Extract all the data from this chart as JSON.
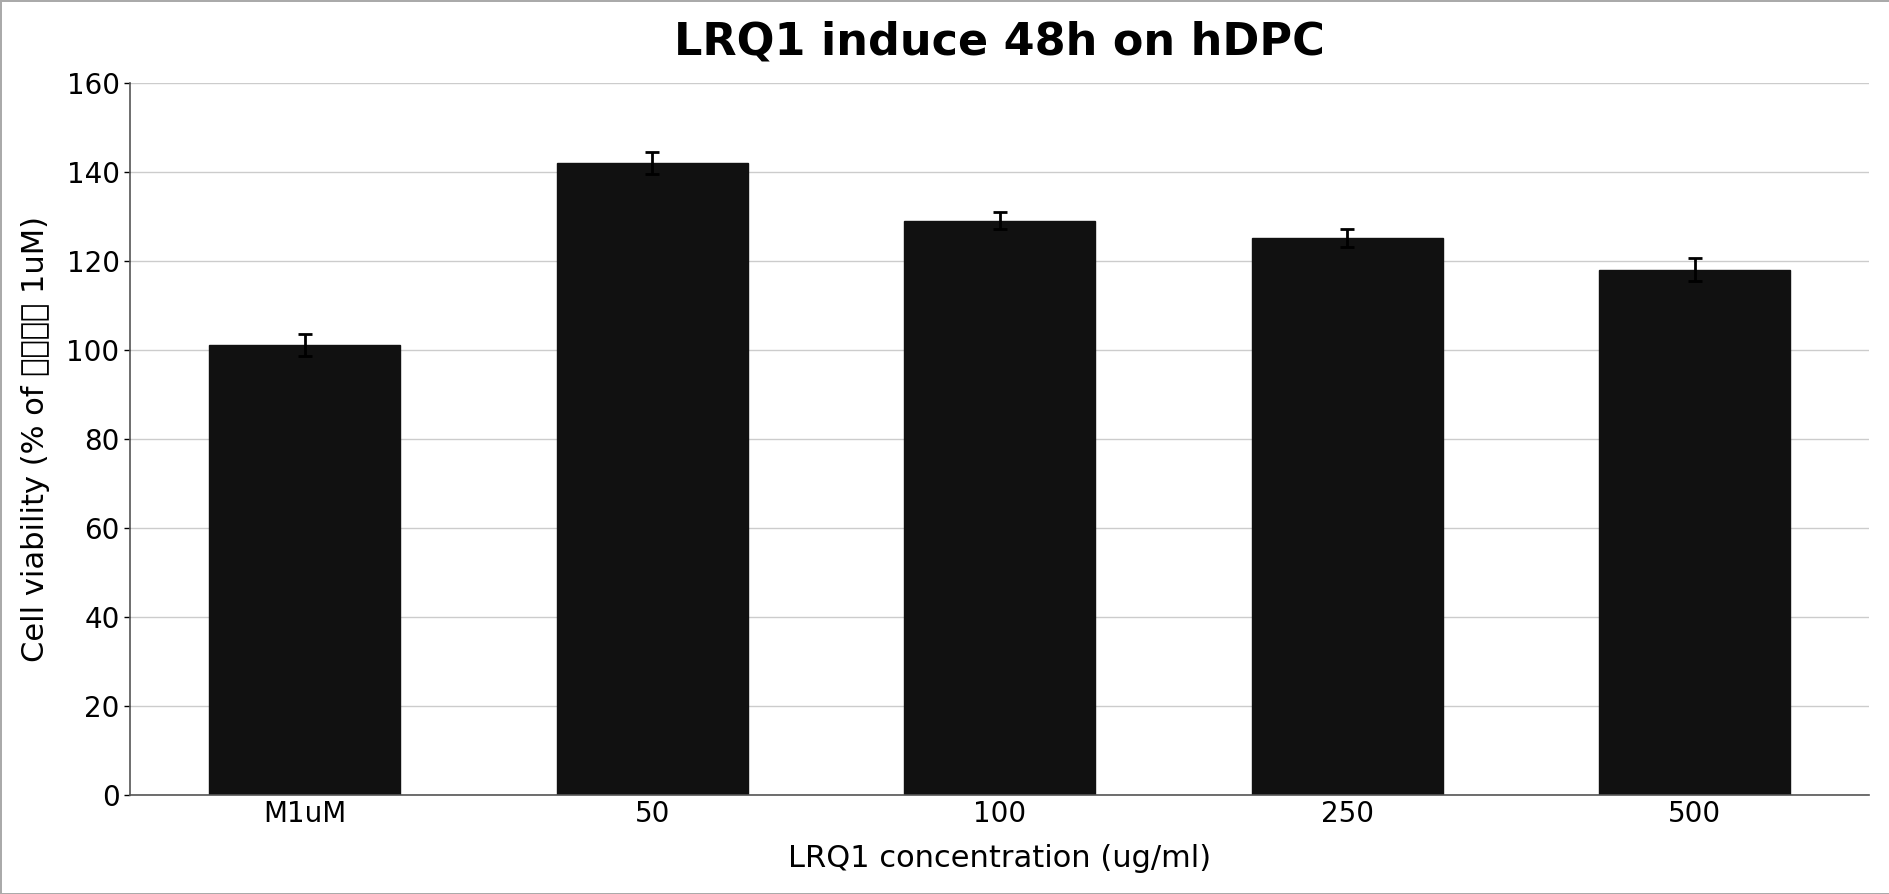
{
  "title": "LRQ1 induce 48h on hDPC",
  "xlabel": "LRQ1 concentration (ug/ml)",
  "ylabel": "Cell viability (% of 미록시딘 1uM)",
  "categories": [
    "M1uM",
    "50",
    "100",
    "250",
    "500"
  ],
  "values": [
    101.0,
    142.0,
    129.0,
    125.0,
    118.0
  ],
  "errors": [
    2.5,
    2.5,
    2.0,
    2.0,
    2.5
  ],
  "bar_color": "#111111",
  "background_color": "#ffffff",
  "plot_bg_color": "#ffffff",
  "border_color": "#aaaaaa",
  "ylim": [
    0,
    160
  ],
  "yticks": [
    0,
    20,
    40,
    60,
    80,
    100,
    120,
    140,
    160
  ],
  "title_fontsize": 32,
  "label_fontsize": 22,
  "tick_fontsize": 20,
  "bar_width": 0.55,
  "grid_color": "#cccccc",
  "grid_linewidth": 1.0
}
